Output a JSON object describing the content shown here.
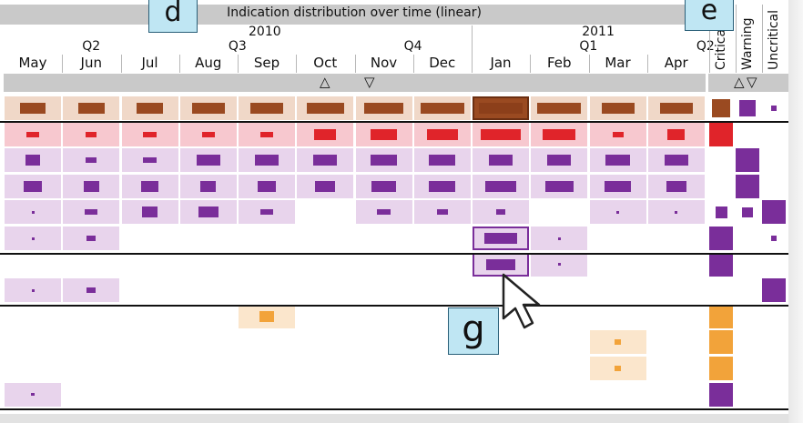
{
  "title": "Indication distribution over time (linear)",
  "years": [
    {
      "label": "2010",
      "col": 4
    },
    {
      "label": "2011",
      "col": 9.7
    }
  ],
  "quarters": [
    {
      "label": "Q2",
      "col": 1
    },
    {
      "label": "Q3",
      "col": 3.5
    },
    {
      "label": "Q4",
      "col": 6.5
    },
    {
      "label": "Q1",
      "col": 9.5
    },
    {
      "label": "Q2",
      "col": 11.5
    }
  ],
  "months": [
    "May",
    "Jun",
    "Jul",
    "Aug",
    "Sep",
    "Oct",
    "Nov",
    "Dec",
    "Jan",
    "Feb",
    "Mar",
    "Apr"
  ],
  "categories": [
    "Critical",
    "Warning",
    "Uncritical"
  ],
  "sort_up": "△",
  "sort_down": "▽",
  "callouts": {
    "d": "d",
    "e": "e",
    "g": "g"
  },
  "colors": {
    "brown": "#9a4a21",
    "brown_bg": "#f0d8c8",
    "red": "#e0242a",
    "red_bg": "#f7c8cf",
    "purple": "#7a2e9a",
    "purple_bg": "#e8d4ec",
    "orange": "#f2a33a",
    "orange_bg": "#fbe6cc"
  },
  "rows": [
    {
      "type": "brown",
      "cells": [
        [
          0,
          0.6
        ],
        [
          1,
          0.6
        ],
        [
          2,
          0.6
        ],
        [
          3,
          0.75
        ],
        [
          4,
          0.75
        ],
        [
          5,
          0.85
        ],
        [
          6,
          0.9
        ],
        [
          7,
          1
        ],
        [
          8,
          1
        ],
        [
          9,
          1
        ],
        [
          10,
          0.75
        ],
        [
          11,
          0.75
        ]
      ],
      "selected": 8,
      "cat": [
        [
          0,
          "brown",
          0.8
        ],
        [
          1,
          "purple",
          0.7
        ],
        [
          2,
          "purple",
          0.25
        ]
      ]
    },
    {
      "type": "red",
      "cells": [
        [
          0,
          0.3
        ],
        [
          1,
          0.25
        ],
        [
          2,
          0.3
        ],
        [
          3,
          0.3
        ],
        [
          4,
          0.3
        ],
        [
          5,
          0.5
        ],
        [
          6,
          0.6
        ],
        [
          7,
          0.7
        ],
        [
          8,
          0.9
        ],
        [
          9,
          0.75
        ],
        [
          10,
          0.25
        ],
        [
          11,
          0.4
        ]
      ],
      "cat": [
        [
          0,
          "red",
          1
        ]
      ]
    },
    {
      "type": "purple",
      "cells": [
        [
          0,
          0.35
        ],
        [
          1,
          0.25
        ],
        [
          2,
          0.3
        ],
        [
          3,
          0.55
        ],
        [
          4,
          0.55
        ],
        [
          5,
          0.55
        ],
        [
          6,
          0.6
        ],
        [
          7,
          0.6
        ],
        [
          8,
          0.55
        ],
        [
          9,
          0.55
        ],
        [
          10,
          0.55
        ],
        [
          11,
          0.55
        ]
      ],
      "cat": [
        [
          1,
          "purple",
          1
        ]
      ]
    },
    {
      "type": "purple",
      "cells": [
        [
          0,
          0.4
        ],
        [
          1,
          0.35
        ],
        [
          2,
          0.4
        ],
        [
          3,
          0.35
        ],
        [
          4,
          0.4
        ],
        [
          5,
          0.45
        ],
        [
          6,
          0.55
        ],
        [
          7,
          0.6
        ],
        [
          8,
          0.7
        ],
        [
          9,
          0.65
        ],
        [
          10,
          0.6
        ],
        [
          11,
          0.45
        ]
      ],
      "cat": [
        [
          1,
          "purple",
          1
        ]
      ]
    },
    {
      "type": "purple",
      "cells": [
        [
          0,
          0.06
        ],
        [
          1,
          0.3
        ],
        [
          2,
          0.35
        ],
        [
          3,
          0.45
        ],
        [
          4,
          0.3
        ],
        [
          6,
          0.3
        ],
        [
          7,
          0.25
        ],
        [
          8,
          0.2
        ],
        [
          10,
          0.06
        ],
        [
          11,
          0.06
        ]
      ],
      "cat": [
        [
          0,
          "purple",
          0.5
        ],
        [
          1,
          "purple",
          0.45
        ],
        [
          2,
          "purple",
          1
        ]
      ]
    },
    {
      "type": "purple",
      "cells": [
        [
          0,
          0.06
        ],
        [
          1,
          0.2
        ],
        [
          8,
          0.75
        ],
        [
          9,
          0.06
        ]
      ],
      "boxed": 8,
      "cat": [
        [
          0,
          "purple",
          1
        ],
        [
          2,
          "purple",
          0.25
        ]
      ]
    },
    {
      "type": "purple",
      "cells": [
        [
          8,
          0.65
        ],
        [
          9,
          0.06
        ]
      ],
      "boxed": 8,
      "cat": [
        [
          0,
          "purple",
          1
        ]
      ]
    },
    {
      "type": "purple",
      "cells": [
        [
          0,
          0.06
        ],
        [
          1,
          0.2
        ]
      ],
      "cat": [
        [
          2,
          "purple",
          1
        ]
      ]
    },
    {
      "type": "orange",
      "cells": [
        [
          4,
          0.35
        ]
      ],
      "cat": [
        [
          0,
          "orange",
          1
        ]
      ]
    },
    {
      "type": "orange",
      "cells": [
        [
          10,
          0.15
        ]
      ],
      "cat": [
        [
          0,
          "orange",
          1
        ]
      ]
    },
    {
      "type": "orange",
      "cells": [
        [
          10,
          0.15
        ]
      ],
      "cat": [
        [
          0,
          "orange",
          1
        ]
      ]
    },
    {
      "type": "purple",
      "cells": [
        [
          0,
          0.08
        ]
      ],
      "cat": [
        [
          0,
          "purple",
          1
        ]
      ]
    }
  ]
}
